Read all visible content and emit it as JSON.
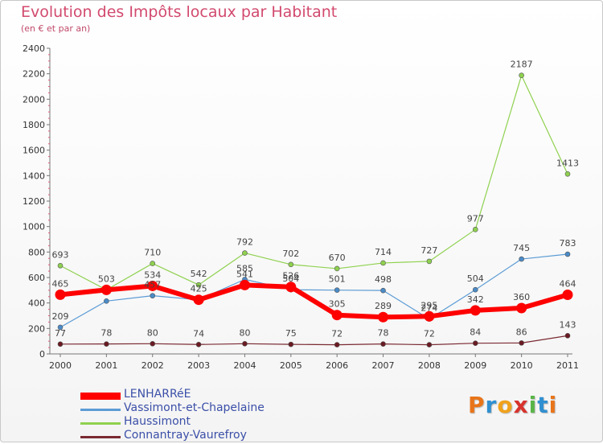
{
  "header": {
    "title": "Evolution des Impôts locaux par Habitant",
    "subtitle": "(en € et par an)"
  },
  "logo": {
    "letters": [
      "P",
      "r",
      "o",
      "x",
      "i",
      "t",
      "i"
    ],
    "colors": [
      "#e8751a",
      "#2f8fd1",
      "#f0a21b",
      "#d8322d",
      "#59b548",
      "#2f8fd1",
      "#e8751a"
    ]
  },
  "chart_data": {
    "type": "line",
    "title": "Evolution des Impôts locaux par Habitant",
    "subtitle": "(en € et par an)",
    "xlabel": "",
    "ylabel": "",
    "x": [
      "2000",
      "2001",
      "2002",
      "2003",
      "2004",
      "2005",
      "2006",
      "2007",
      "2008",
      "2009",
      "2010",
      "2011"
    ],
    "ylim": [
      0,
      2400
    ],
    "yticks": [
      0,
      200,
      400,
      600,
      800,
      1000,
      1200,
      1400,
      1600,
      1800,
      2000,
      2200,
      2400
    ],
    "grid": false,
    "legend_position": "bottom-left",
    "series": [
      {
        "name": "Haussimont",
        "color": "#8fd14f",
        "dot": "#8fd14f",
        "stroke": 1.2,
        "radius": 3,
        "values": [
          693,
          503,
          710,
          542,
          792,
          702,
          670,
          714,
          727,
          977,
          2187,
          1413
        ],
        "labels": [
          "693",
          "",
          "710",
          "542",
          "792",
          "702",
          "670",
          "714",
          "727",
          "977",
          "2187",
          "1413"
        ]
      },
      {
        "name": "Vassimont-et-Chapelaine",
        "color": "#5b9bd5",
        "dot": "#4a8bc8",
        "stroke": 1.2,
        "radius": 3,
        "values": [
          209,
          415,
          457,
          425,
          585,
          504,
          501,
          498,
          274,
          504,
          745,
          783
        ],
        "labels": [
          "209",
          "",
          "457",
          "425",
          "585",
          "504",
          "501",
          "498",
          "274",
          "504",
          "745",
          "783"
        ]
      },
      {
        "name": "Connantray-Vaurefroy",
        "color": "#7a2a32",
        "dot": "#6a1a22",
        "stroke": 1.2,
        "radius": 3,
        "values": [
          77,
          78,
          80,
          74,
          80,
          75,
          72,
          78,
          72,
          84,
          86,
          143
        ],
        "labels": [
          "77",
          "78",
          "80",
          "74",
          "80",
          "75",
          "72",
          "78",
          "72",
          "84",
          "86",
          "143"
        ]
      },
      {
        "name": "LENHARRéE",
        "color": "#ff0000",
        "dot": "#ff0000",
        "stroke": 6,
        "radius": 6.5,
        "values": [
          465,
          503,
          534,
          425,
          541,
          526,
          305,
          289,
          295,
          342,
          360,
          464
        ],
        "labels": [
          "465",
          "503",
          "534",
          "",
          "541",
          "526",
          "305",
          "289",
          "295",
          "342",
          "360",
          "464"
        ]
      }
    ],
    "legend_order": [
      "LENHARRéE",
      "Vassimont-et-Chapelaine",
      "Haussimont",
      "Connantray-Vaurefroy"
    ]
  }
}
